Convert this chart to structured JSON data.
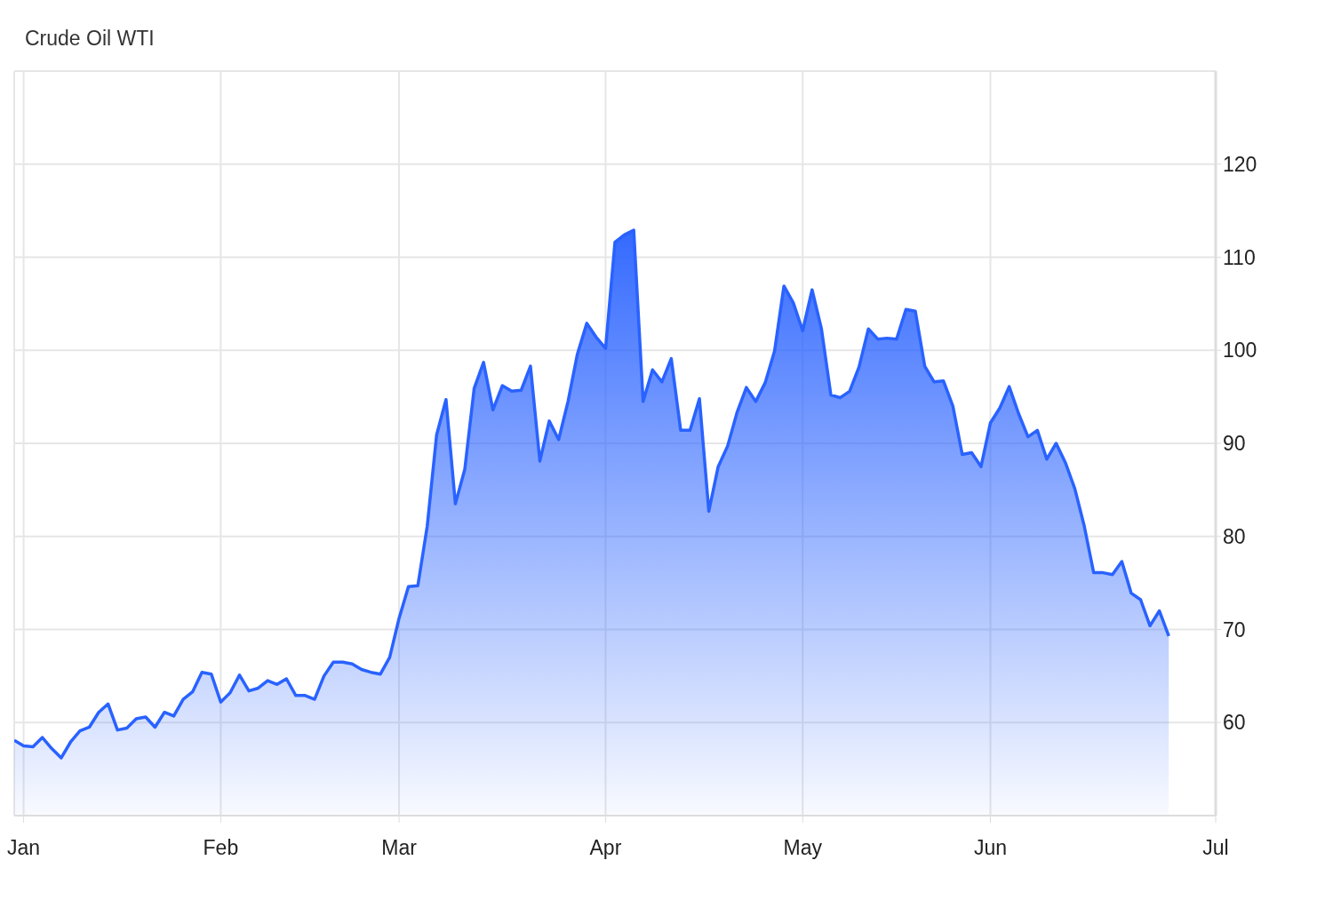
{
  "chart_data": {
    "type": "area",
    "title": "Crude Oil WTI",
    "categories": [
      null,
      "Jan",
      null,
      null,
      null,
      null,
      null,
      null,
      null,
      null,
      null,
      null,
      null,
      null,
      null,
      null,
      null,
      null,
      null,
      null,
      null,
      null,
      "Feb",
      null,
      null,
      null,
      null,
      null,
      null,
      null,
      null,
      null,
      null,
      null,
      null,
      null,
      null,
      null,
      null,
      null,
      null,
      "Mar",
      null,
      null,
      null,
      null,
      null,
      null,
      null,
      null,
      null,
      null,
      null,
      null,
      null,
      null,
      null,
      null,
      null,
      null,
      null,
      null,
      null,
      "Apr",
      null,
      null,
      null,
      null,
      null,
      null,
      null,
      null,
      null,
      null,
      null,
      null,
      null,
      null,
      null,
      null,
      null,
      null,
      null,
      null,
      "May",
      null,
      null,
      null,
      null,
      null,
      null,
      null,
      null,
      null,
      null,
      null,
      null,
      null,
      null,
      null,
      null,
      null,
      null,
      null,
      "Jun",
      null,
      null,
      null,
      null,
      null,
      null,
      null,
      null,
      null,
      null,
      null,
      null,
      null,
      null,
      null,
      null,
      null,
      null,
      null,
      null,
      null,
      null,
      null,
      "Jul"
    ],
    "series": [
      {
        "color": "#2962ff",
        "values": [
          58.1,
          57.5,
          57.4,
          58.4,
          57.2,
          56.2,
          57.9,
          59.1,
          59.5,
          61.1,
          62.0,
          59.2,
          59.4,
          60.4,
          60.6,
          59.5,
          61.1,
          60.7,
          62.5,
          63.3,
          65.4,
          65.2,
          62.2,
          63.2,
          65.1,
          63.4,
          63.7,
          64.5,
          64.1,
          64.7,
          62.9,
          62.9,
          62.5,
          65.0,
          66.5,
          66.5,
          66.3,
          65.7,
          65.4,
          65.2,
          67.0,
          71.2,
          74.6,
          74.7,
          81.1,
          90.9,
          94.7,
          83.5,
          87.2,
          95.9,
          98.7,
          93.6,
          96.2,
          95.6,
          95.7,
          98.3,
          88.1,
          92.4,
          90.4,
          94.5,
          99.6,
          102.9,
          101.4,
          100.2,
          111.6,
          112.4,
          112.9,
          94.5,
          97.9,
          96.6,
          99.1,
          91.4,
          91.4,
          94.8,
          82.7,
          87.5,
          89.7,
          93.3,
          96.0,
          94.5,
          96.5,
          99.9,
          106.9,
          105.1,
          102.1,
          106.5,
          102.3,
          95.2,
          94.9,
          95.6,
          98.2,
          102.3,
          101.2,
          101.3,
          101.2,
          104.4,
          104.2,
          98.3,
          96.6,
          96.7,
          94.0,
          88.8,
          89.0,
          87.5,
          92.2,
          93.8,
          96.1,
          93.2,
          90.7,
          91.4,
          88.3,
          90.0,
          87.9,
          85.1,
          81.1,
          76.1,
          76.1,
          75.9,
          77.3,
          73.9,
          73.2,
          70.4,
          72.0,
          69.3,
          null,
          null,
          null,
          null,
          null
        ]
      }
    ],
    "ylim": [
      50,
      130
    ],
    "yticks": [
      60,
      70,
      80,
      90,
      100,
      110,
      120
    ],
    "grid": true
  }
}
